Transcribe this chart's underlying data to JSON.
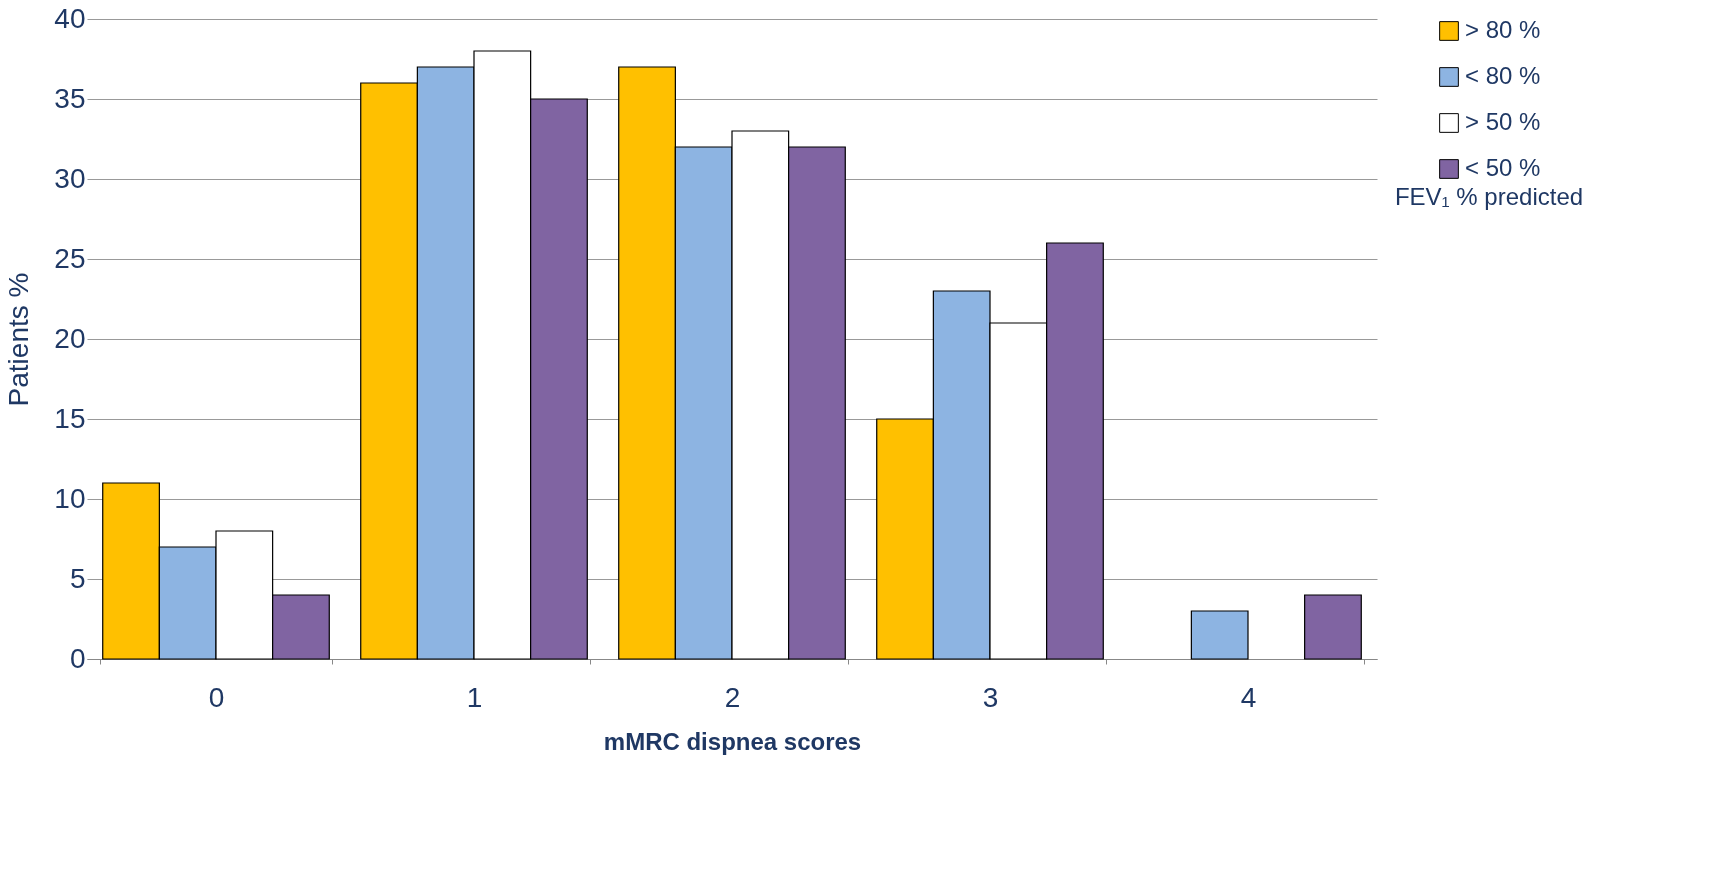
{
  "chart_data": {
    "type": "bar",
    "xlabel": "mMRC dispnea scores",
    "ylabel": "Patients %",
    "legend_title": "FEV₁ % predicted",
    "categories": [
      "0",
      "1",
      "2",
      "3",
      "4"
    ],
    "series": [
      {
        "name": "> 80 %",
        "color": "#ffc000",
        "values": [
          11,
          36,
          37,
          15,
          null
        ]
      },
      {
        "name": "< 80 %",
        "color": "#8db4e2",
        "values": [
          7,
          37,
          32,
          23,
          3
        ]
      },
      {
        "name": "> 50 %",
        "color": "#ffffff",
        "values": [
          8,
          38,
          33,
          21,
          null
        ]
      },
      {
        "name": "< 50 %",
        "color": "#8064a2",
        "values": [
          4,
          35,
          32,
          26,
          4
        ]
      }
    ],
    "ylim": [
      0,
      40
    ],
    "yticks": [
      0,
      5,
      10,
      15,
      20,
      25,
      30,
      35,
      40
    ],
    "grid": "y",
    "legend": "right"
  }
}
